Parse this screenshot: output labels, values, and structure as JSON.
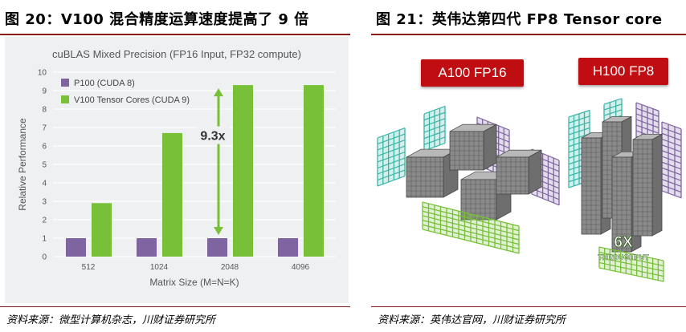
{
  "left_panel": {
    "figure_title": "图 20：V100 混合精度运算速度提高了 9 倍",
    "source": "资料来源：微型计算机杂志，川财证券研究所"
  },
  "right_panel": {
    "figure_title": "图 21：英伟达第四代 FP8 Tensor core",
    "source": "资料来源：英伟达官网，川财证券研究所",
    "a100_label": "A100 FP16",
    "h100_label": "H100 FP8",
    "speedup_label": "6X",
    "throughput_label": "THROUGHPUT"
  },
  "chart_data": {
    "type": "bar",
    "title": "cuBLAS Mixed Precision (FP16 Input, FP32 compute)",
    "xlabel": "Matrix Size (M=N=K)",
    "ylabel": "Relative Performance",
    "categories": [
      "512",
      "1024",
      "2048",
      "4096"
    ],
    "series": [
      {
        "name": "P100 (CUDA 8)",
        "values": [
          1,
          1,
          1,
          1
        ],
        "color": "#8064a2"
      },
      {
        "name": "V100 Tensor Cores (CUDA 9)",
        "values": [
          2.9,
          6.7,
          9.3,
          9.3
        ],
        "color": "#77c037"
      }
    ],
    "ylim": [
      0,
      10
    ],
    "yticks": [
      0,
      1,
      2,
      3,
      4,
      5,
      6,
      7,
      8,
      9,
      10
    ],
    "grid": true,
    "legend": "top-left",
    "annotation": {
      "text": "9.3x",
      "category": "2048",
      "from": 1,
      "to": 9.3,
      "color": "#77c037"
    }
  },
  "colors": {
    "accent_red": "#c00d12",
    "rule": "#8b1a1a",
    "green": "#77c037",
    "purple": "#8064a2",
    "teal": "#3bb5a8"
  }
}
